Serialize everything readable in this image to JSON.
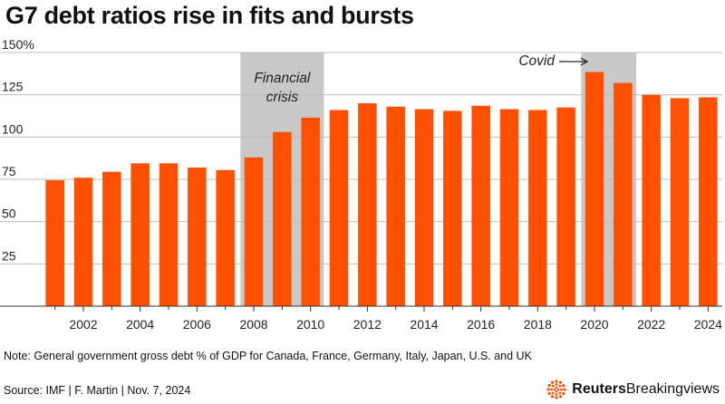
{
  "chart_data": {
    "type": "bar",
    "title": "G7 debt ratios rise in fits and bursts",
    "x": [
      2001,
      2002,
      2003,
      2004,
      2005,
      2006,
      2007,
      2008,
      2009,
      2010,
      2011,
      2012,
      2013,
      2014,
      2015,
      2016,
      2017,
      2018,
      2019,
      2020,
      2021,
      2022,
      2023,
      2024
    ],
    "values": [
      74.5,
      76,
      79.5,
      84.5,
      84.5,
      82,
      80.5,
      88,
      103,
      111.5,
      116,
      120,
      118,
      116.5,
      115.5,
      118.5,
      116.5,
      116,
      117.5,
      138.5,
      132,
      125,
      123,
      123.5
    ],
    "xtick_labels": [
      "2002",
      "2004",
      "2006",
      "2008",
      "2010",
      "2012",
      "2014",
      "2016",
      "2018",
      "2020",
      "2022",
      "2024"
    ],
    "ytick_labels": [
      "150%",
      "125",
      "100",
      "75",
      "50",
      "25"
    ],
    "ylim": [
      0,
      150
    ],
    "xlabel": "",
    "ylabel": "",
    "bar_color": "#ff4f00",
    "shade_color": "#c8c8c8",
    "shaded_periods": [
      {
        "label": "Financial crisis",
        "label_lines": [
          "Financial",
          "crisis"
        ],
        "from": 2008,
        "to": 2010
      },
      {
        "label": "Covid",
        "label_lines": [
          "Covid"
        ],
        "from": 2020,
        "to": 2021
      }
    ],
    "grid": true
  },
  "footer": {
    "note": "Note: General government gross debt % of GDP for Canada, France, Germany, Italy, Japan, U.S. and UK",
    "source": "Source: IMF | F. Martin | Nov. 7, 2024",
    "brand_bold": "Reuters",
    "brand_light": "Breakingviews",
    "brand_color": "#ff4f00"
  }
}
